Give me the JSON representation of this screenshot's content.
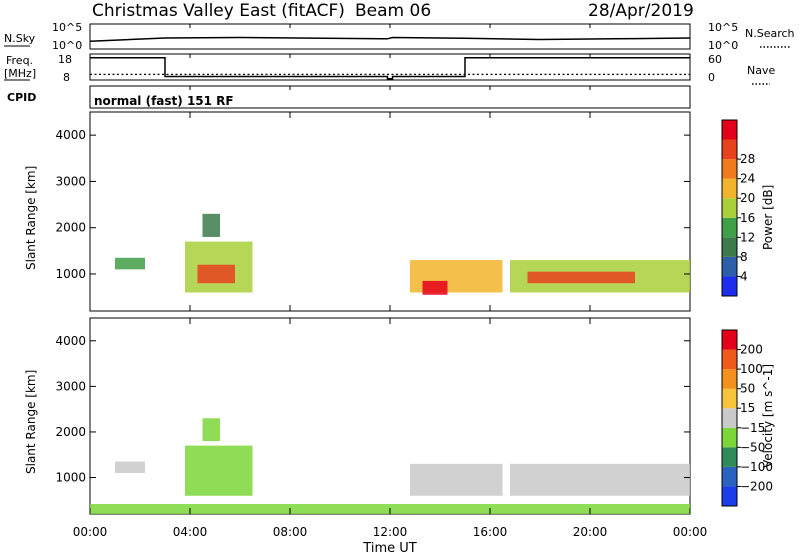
{
  "header": {
    "station": "Christmas Valley East (fitACF)",
    "beam": "Beam 06",
    "date": "28/Apr/2019"
  },
  "left_labels": {
    "nsky": "N.Sky",
    "freq_line1": "Freq.",
    "freq_line2": "[MHz]",
    "cpid": "CPID"
  },
  "right_labels": {
    "nsearch": "N.Search",
    "nave": "Nave"
  },
  "cpid_text": "normal (fast) 151 RF",
  "xaxis": {
    "label": "Time UT",
    "ticks": [
      "00:00",
      "04:00",
      "08:00",
      "12:00",
      "16:00",
      "20:00",
      "00:00"
    ]
  },
  "chart_data": [
    {
      "type": "line",
      "title": "N.Sky / N.Search",
      "ylabel_left": "N.Sky",
      "ylabel_right": "N.Search",
      "yticks_left": [
        "10^5",
        "10^0"
      ],
      "yticks_right": [
        "10^5",
        "10^0"
      ],
      "x_hours": [
        0,
        3,
        6,
        11.9,
        12.1,
        15,
        18,
        21,
        24
      ],
      "nsky_level": [
        0.15,
        0.28,
        0.3,
        0.25,
        0.3,
        0.27,
        0.22,
        0.25,
        0.28
      ]
    },
    {
      "type": "line",
      "title": "Frequency / Nave",
      "ylabel": "Freq. [MHz]",
      "ylabel_right": "Nave",
      "yticks_left": [
        "18",
        "8"
      ],
      "yticks_right": [
        "60",
        "0"
      ],
      "freq_series": {
        "x_hours": [
          0,
          3,
          3,
          11.9,
          11.9,
          12.1,
          12.1,
          15,
          15,
          24
        ],
        "values": [
          16.5,
          16.5,
          8.9,
          8.9,
          8,
          8,
          8.9,
          8.9,
          16.5,
          16.5
        ]
      },
      "nave_level": 13
    },
    {
      "type": "heatmap",
      "title": "Power",
      "ylabel": "Slant Range [km]",
      "yticks": [
        "1000",
        "2000",
        "3000",
        "4000"
      ],
      "yrange": [
        200,
        4500
      ],
      "colorbar_label": "Power [dB]",
      "colorbar_ticks": [
        "4",
        "8",
        "12",
        "16",
        "20",
        "24",
        "28"
      ],
      "colorbar_colors": [
        "#1c2dee",
        "#2d5fa8",
        "#3d7a4b",
        "#3f9f48",
        "#a9cf3a",
        "#f2b42c",
        "#f07a1e",
        "#e8421c",
        "#e4001a"
      ],
      "patches": [
        {
          "t0": 1.0,
          "t1": 2.2,
          "r0": 1100,
          "r1": 1350,
          "level": 3
        },
        {
          "t0": 3.8,
          "t1": 6.5,
          "r0": 600,
          "r1": 1700,
          "level": 4
        },
        {
          "t0": 4.3,
          "t1": 5.8,
          "r0": 800,
          "r1": 1200,
          "level": 7
        },
        {
          "t0": 4.5,
          "t1": 5.2,
          "r0": 1800,
          "r1": 2300,
          "level": 2
        },
        {
          "t0": 12.8,
          "t1": 16.5,
          "r0": 600,
          "r1": 1300,
          "level": 5
        },
        {
          "t0": 13.3,
          "t1": 14.3,
          "r0": 550,
          "r1": 850,
          "level": 8
        },
        {
          "t0": 16.8,
          "t1": 24.0,
          "r0": 600,
          "r1": 1300,
          "level": 4
        },
        {
          "t0": 17.5,
          "t1": 21.8,
          "r0": 800,
          "r1": 1050,
          "level": 7
        }
      ]
    },
    {
      "type": "heatmap",
      "title": "Velocity",
      "ylabel": "Slant Range [km]",
      "yticks": [
        "1000",
        "2000",
        "3000",
        "4000"
      ],
      "yrange": [
        200,
        4500
      ],
      "colorbar_label": "Velocity [m s^-1]",
      "colorbar_ticks": [
        "200",
        "100",
        "50",
        "15",
        "−15",
        "−50",
        "−100",
        "−200"
      ],
      "colorbar_colors": [
        "#1c3de8",
        "#2a62c0",
        "#2e8b57",
        "#7bd63a",
        "#c9c9c9",
        "#f5c43a",
        "#f3901e",
        "#ef5a1b",
        "#e4001a"
      ],
      "patches": [
        {
          "t0": 1.0,
          "t1": 2.2,
          "r0": 1100,
          "r1": 1350,
          "level": 4
        },
        {
          "t0": 3.8,
          "t1": 6.5,
          "r0": 600,
          "r1": 1700,
          "level": 3
        },
        {
          "t0": 4.5,
          "t1": 5.2,
          "r0": 1800,
          "r1": 2300,
          "level": 3
        },
        {
          "t0": 12.8,
          "t1": 16.5,
          "r0": 600,
          "r1": 1300,
          "level": 4
        },
        {
          "t0": 16.8,
          "t1": 24.0,
          "r0": 600,
          "r1": 1300,
          "level": 4
        },
        {
          "t0": 0.0,
          "t1": 24.0,
          "r0": 200,
          "r1": 420,
          "level": 3
        }
      ]
    }
  ]
}
